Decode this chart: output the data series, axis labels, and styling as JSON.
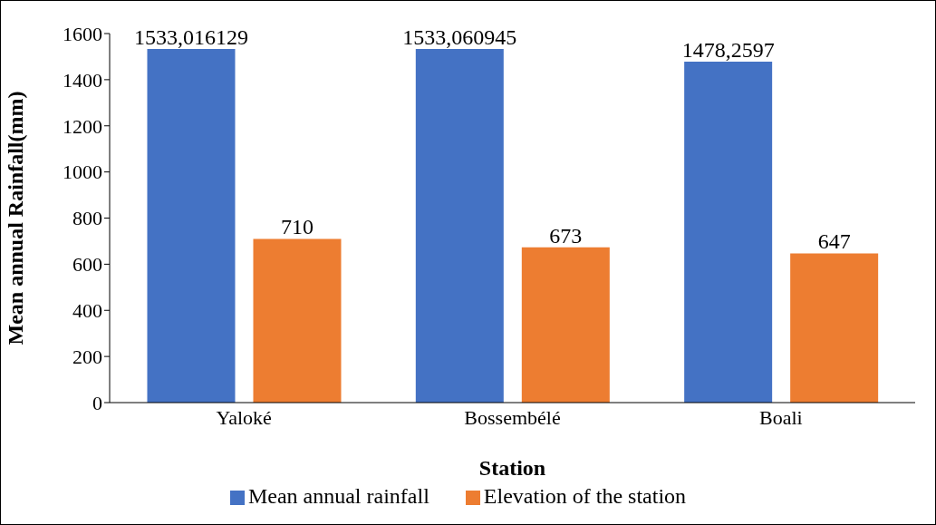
{
  "chart_data": {
    "type": "bar",
    "xlabel": "Station",
    "ylabel": "Mean annual Rainfall(mm)",
    "categories": [
      "Yaloké",
      "Bossembélé",
      "Boali"
    ],
    "series": [
      {
        "name": "Mean annual rainfall",
        "color": "#4472c4",
        "values": [
          1533.016129,
          1533.060945,
          1478.2597
        ],
        "value_labels": [
          "1533,016129",
          "1533,060945",
          "1478,2597"
        ]
      },
      {
        "name": "Elevation of the station",
        "color": "#ed7d31",
        "values": [
          710,
          673,
          647
        ],
        "value_labels": [
          "710",
          "673",
          "647"
        ]
      }
    ],
    "ylim": [
      0,
      1600
    ],
    "yticks": [
      0,
      200,
      400,
      600,
      800,
      1000,
      1200,
      1400,
      1600
    ],
    "grid": false,
    "legend": "bottom"
  }
}
